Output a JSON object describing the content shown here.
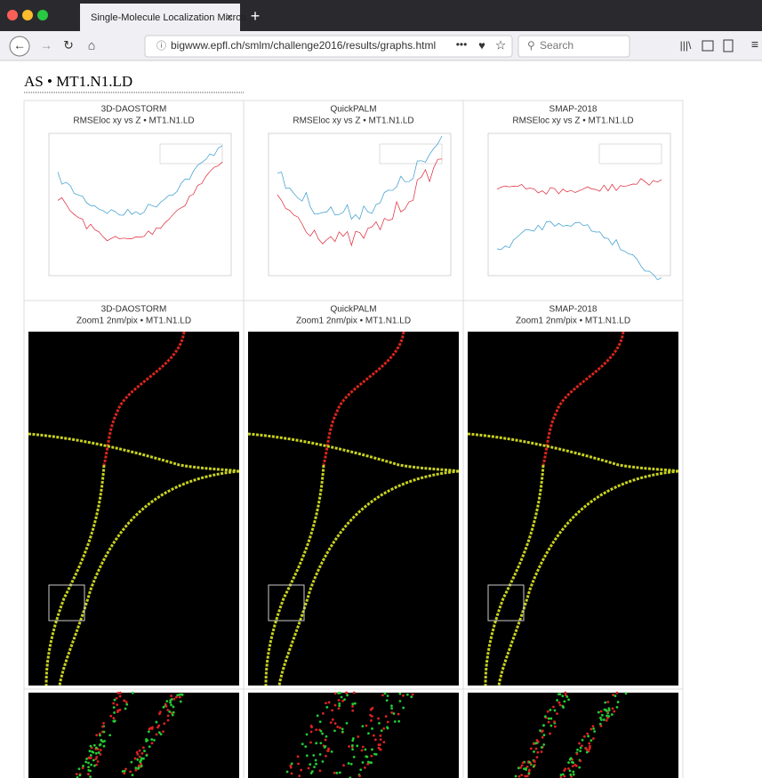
{
  "browser": {
    "tab_title": "Single-Molecule Localization Micros",
    "url": "bigwww.epfl.ch/smlm/challenge2016/results/graphs.html",
    "search_placeholder": "Search"
  },
  "page": {
    "heading": "AS • MT1.N1.LD",
    "columns": [
      {
        "name": "3D-DAOSTORM",
        "chart_caption": "RMSEloc xy vs Z • MT1.N1.LD",
        "image_caption": "Zoom1 2nm/pix • MT1.N1.LD"
      },
      {
        "name": "QuickPALM",
        "chart_caption": "RMSEloc xy vs Z • MT1.N1.LD",
        "image_caption": "Zoom1 2nm/pix • MT1.N1.LD"
      },
      {
        "name": "SMAP-2018",
        "chart_caption": "RMSEloc xy vs Z • MT1.N1.LD",
        "image_caption": "Zoom1 2nm/pix • MT1.N1.LD"
      }
    ]
  }
}
